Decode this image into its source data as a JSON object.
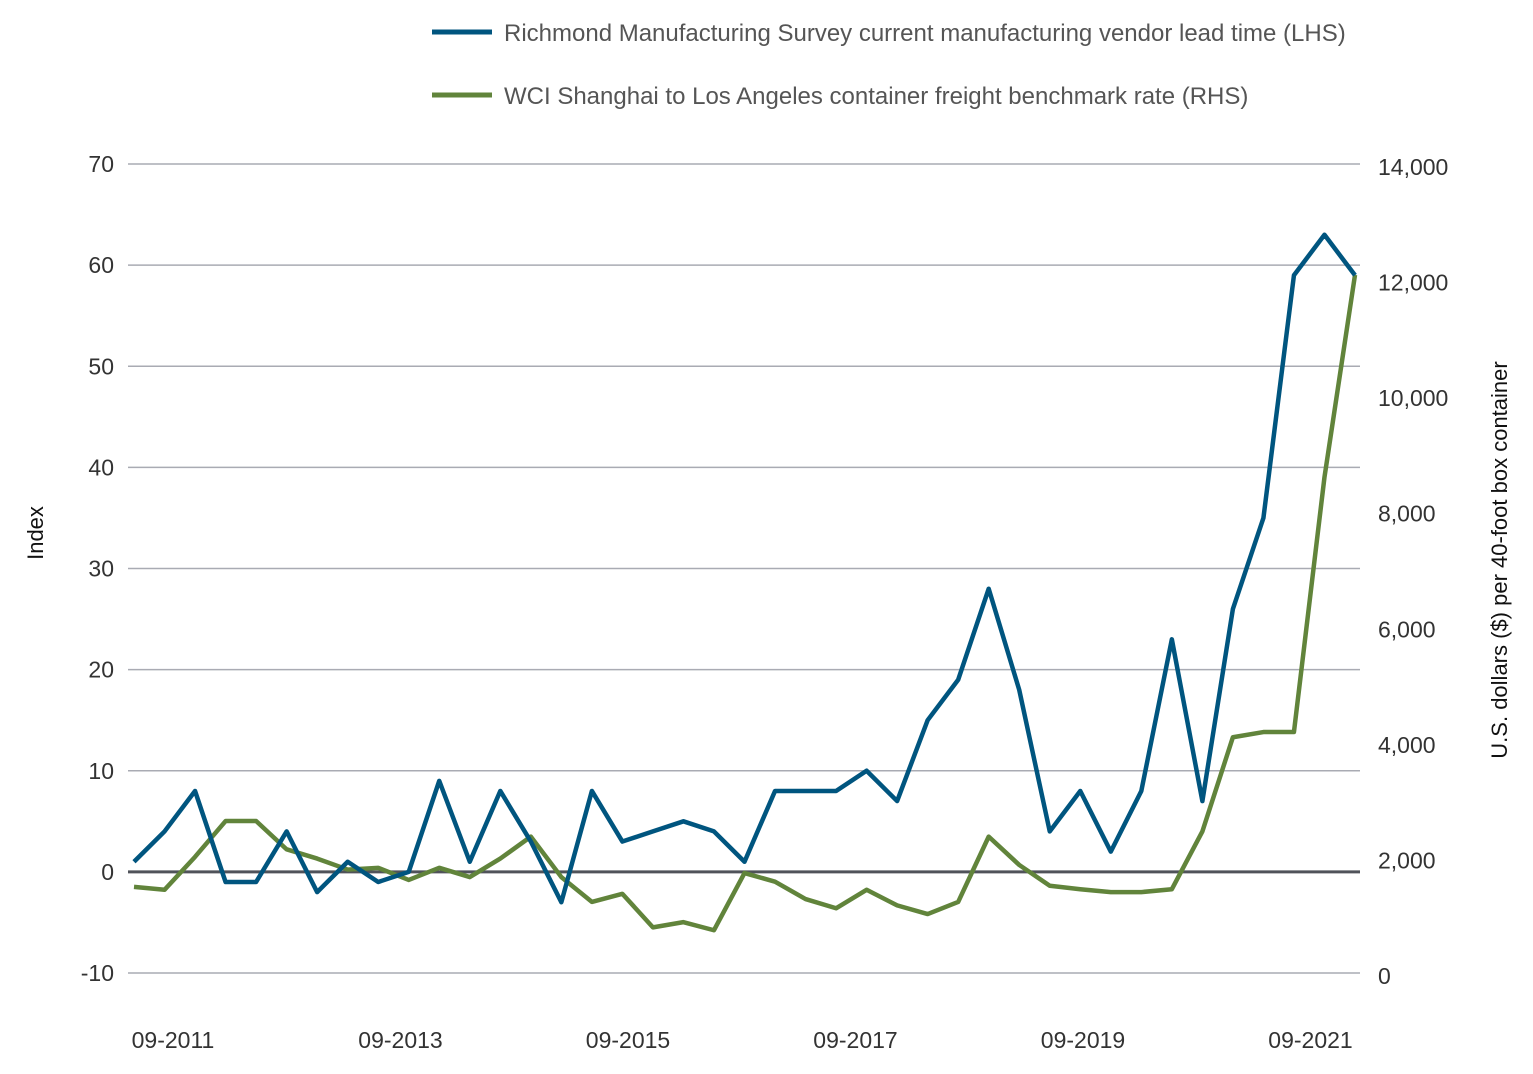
{
  "chart_data": {
    "type": "line",
    "title": "",
    "xlabel": "",
    "ylabel": "Index",
    "ylabel_right": "U.S. dollars ($) per 40-foot box container",
    "ylim": [
      -10,
      70
    ],
    "ylim_right": [
      0,
      14000
    ],
    "yticks": [
      "70",
      "60",
      "50",
      "40",
      "30",
      "20",
      "10",
      "0",
      "-10"
    ],
    "yticks_right": [
      "14,000",
      "12,000",
      "10,000",
      "8,000",
      "6,000",
      "4,000",
      "2,000",
      "0"
    ],
    "xtick_labels": [
      "09-2011",
      "09-2013",
      "09-2015",
      "09-2017",
      "09-2019",
      "09-2021"
    ],
    "grid": true,
    "legend_position": "top",
    "series": [
      {
        "name": "Richmond Manufacturing Survey current manufacturing vendor lead time (LHS)",
        "axis": "left",
        "color": "#00557f",
        "values": [
          1,
          4,
          8,
          -1,
          -1,
          4,
          -2,
          1,
          -1,
          0,
          9,
          1,
          8,
          3,
          -3,
          8,
          3,
          4,
          5,
          4,
          1,
          8,
          8,
          8,
          10,
          7,
          15,
          19,
          28,
          18,
          4,
          8,
          2,
          8,
          23,
          7,
          26,
          35,
          59,
          63,
          59
        ]
      },
      {
        "name": "WCI Shanghai to Los Angeles container freight benchmark rate (RHS)",
        "axis": "right",
        "color": "#61843b",
        "values": [
          1490,
          1440,
          2010,
          2630,
          2630,
          2140,
          1980,
          1790,
          1820,
          1610,
          1820,
          1660,
          1980,
          2360,
          1660,
          1230,
          1370,
          790,
          880,
          740,
          1730,
          1580,
          1280,
          1120,
          1440,
          1170,
          1020,
          1230,
          2360,
          1870,
          1510,
          1450,
          1400,
          1400,
          1450,
          2450,
          4080,
          4170,
          4170,
          8580,
          12080
        ]
      }
    ]
  }
}
